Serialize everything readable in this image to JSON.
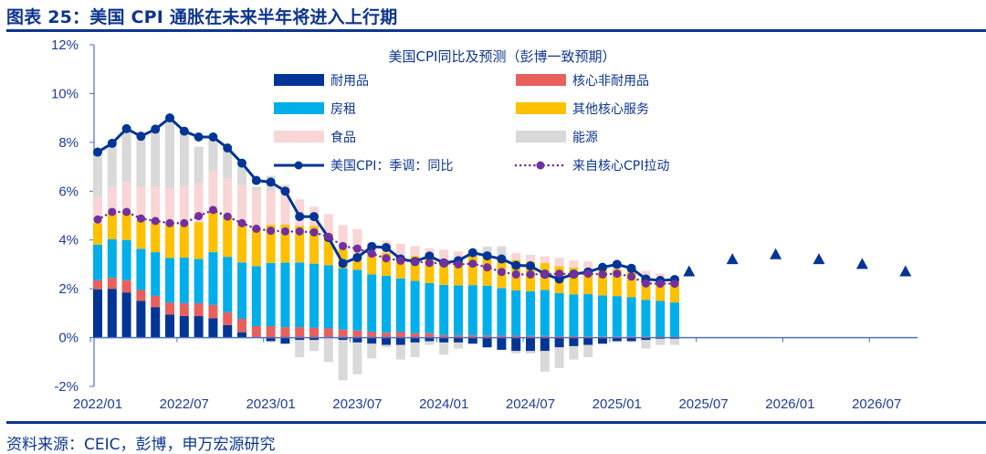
{
  "header": {
    "title": "图表 25：美国 CPI 通胀在未来半年将进入上行期"
  },
  "footer": {
    "source": "资料来源：CEIC，彭博，申万宏源研究"
  },
  "chart_data": {
    "type": "bar",
    "stacked": true,
    "title": "美国CPI同比及预测（彭博一致预期）",
    "xlabel": "",
    "ylabel": "",
    "ylim": [
      -2,
      12
    ],
    "yticks": [
      "-2%",
      "0%",
      "2%",
      "4%",
      "6%",
      "8%",
      "10%",
      "12%"
    ],
    "ytick_values": [
      -2,
      0,
      2,
      4,
      6,
      8,
      10,
      12
    ],
    "xticks": [
      "2022/01",
      "2022/07",
      "2023/01",
      "2023/07",
      "2024/01",
      "2024/07",
      "2025/01",
      "2025/07",
      "2026/01",
      "2026/07"
    ],
    "grid": false,
    "legend_placement": "top",
    "x": [
      "2022/01",
      "2022/02",
      "2022/03",
      "2022/04",
      "2022/05",
      "2022/06",
      "2022/07",
      "2022/08",
      "2022/09",
      "2022/10",
      "2022/11",
      "2022/12",
      "2023/01",
      "2023/02",
      "2023/03",
      "2023/04",
      "2023/05",
      "2023/06",
      "2023/07",
      "2023/08",
      "2023/09",
      "2023/10",
      "2023/11",
      "2023/12",
      "2024/01",
      "2024/02",
      "2024/03",
      "2024/04",
      "2024/05",
      "2024/06",
      "2024/07",
      "2024/08",
      "2024/09",
      "2024/10",
      "2024/11",
      "2024/12",
      "2025/01",
      "2025/02",
      "2025/03",
      "2025/04",
      "2025/05"
    ],
    "series": [
      {
        "name": "耐用品",
        "kind": "bar",
        "color": "#003595",
        "values": [
          1.98,
          2.0,
          1.85,
          1.51,
          1.25,
          0.94,
          0.88,
          0.88,
          0.79,
          0.51,
          0.22,
          0,
          -0.15,
          -0.25,
          -0.1,
          -0.1,
          0,
          -0.1,
          -0.2,
          -0.25,
          -0.3,
          -0.3,
          -0.2,
          -0.15,
          -0.2,
          -0.2,
          -0.25,
          -0.4,
          -0.5,
          -0.55,
          -0.55,
          -0.55,
          -0.4,
          -0.35,
          -0.3,
          -0.25,
          -0.15,
          -0.15,
          -0.1,
          -0.05,
          -0.05
        ]
      },
      {
        "name": "核心非耐用品",
        "kind": "bar",
        "color": "#e8605e",
        "values": [
          0.37,
          0.45,
          0.5,
          0.44,
          0.46,
          0.49,
          0.53,
          0.53,
          0.55,
          0.53,
          0.55,
          0.47,
          0.47,
          0.43,
          0.43,
          0.4,
          0.38,
          0.33,
          0.29,
          0.23,
          0.2,
          0.23,
          0.18,
          0.18,
          0.1,
          0.09,
          0.09,
          0.09,
          0.08,
          0.08,
          0.07,
          0.07,
          0.06,
          0.06,
          0.05,
          0.05,
          0.05,
          0.05,
          0.05,
          0.04,
          0.04
        ]
      },
      {
        "name": "房租",
        "kind": "bar",
        "color": "#00aeea",
        "values": [
          1.46,
          1.58,
          1.65,
          1.69,
          1.79,
          1.83,
          1.87,
          1.81,
          2.16,
          2.27,
          2.31,
          2.46,
          2.59,
          2.64,
          2.65,
          2.63,
          2.59,
          2.51,
          2.49,
          2.36,
          2.33,
          2.2,
          2.15,
          2.05,
          2.06,
          2.05,
          2.06,
          2.04,
          1.95,
          1.85,
          1.83,
          1.88,
          1.76,
          1.71,
          1.73,
          1.68,
          1.65,
          1.6,
          1.5,
          1.46,
          1.4
        ]
      },
      {
        "name": "其他核心服务",
        "kind": "bar",
        "color": "#ffc000",
        "values": [
          0.88,
          1.1,
          1.15,
          1.18,
          1.28,
          1.4,
          1.38,
          1.51,
          1.69,
          1.69,
          1.6,
          1.59,
          1.56,
          1.56,
          1.49,
          1.54,
          1.29,
          0.79,
          0.38,
          0.91,
          0.94,
          0.89,
          1.01,
          1.09,
          1.03,
          0.98,
          1.23,
          1.1,
          1.15,
          1.25,
          1.2,
          1.1,
          1.1,
          1.1,
          1.0,
          1.05,
          1.1,
          1.15,
          0.88,
          0.79,
          0.98
        ]
      },
      {
        "name": "食品",
        "kind": "bar",
        "color": "#f9d5d6",
        "values": [
          1.1,
          1.06,
          1.23,
          1.37,
          1.41,
          1.45,
          1.56,
          1.59,
          1.65,
          1.53,
          1.56,
          1.51,
          1.38,
          1.6,
          1.09,
          0.79,
          0.8,
          0.98,
          1.28,
          0.41,
          0.5,
          0.53,
          0.41,
          0.34,
          0.41,
          0.41,
          0.05,
          0,
          0,
          0.28,
          0.29,
          0.28,
          0.34,
          0.29,
          0.34,
          0.1,
          0.05,
          0.05,
          0.31,
          0.34,
          0.1
        ]
      },
      {
        "name": "能源",
        "kind": "bar",
        "color": "#d9d9d9",
        "values": [
          1.65,
          1.69,
          2.03,
          2.0,
          2.28,
          2.78,
          2.13,
          1.5,
          1.23,
          1.13,
          0.78,
          0.15,
          0.63,
          0.03,
          -0.7,
          -0.45,
          -1.0,
          -1.65,
          -1.3,
          -0.6,
          -0.1,
          -0.6,
          -0.6,
          -0.15,
          -0.5,
          -0.25,
          0.1,
          0.5,
          0.56,
          -0.1,
          -0.1,
          -0.85,
          -0.85,
          -0.55,
          -0.5,
          0.05,
          0.1,
          0.1,
          -0.35,
          -0.25,
          -0.25
        ]
      },
      {
        "name": "美国CPI：季调：同比",
        "kind": "line",
        "color": "#003595",
        "values": [
          7.6,
          7.96,
          8.56,
          8.25,
          8.54,
          9.0,
          8.46,
          8.22,
          8.22,
          7.77,
          7.15,
          6.44,
          6.37,
          6.0,
          4.96,
          4.96,
          4.1,
          3.04,
          3.28,
          3.73,
          3.69,
          3.22,
          3.12,
          3.34,
          3.06,
          3.15,
          3.48,
          3.35,
          3.22,
          2.96,
          2.94,
          2.6,
          2.4,
          2.6,
          2.69,
          2.88,
          3.0,
          2.84,
          2.4,
          2.34,
          2.38
        ]
      },
      {
        "name": "来自核心CPI拉动",
        "kind": "dotted-line",
        "color": "#7030a0",
        "values": [
          4.84,
          5.15,
          5.15,
          4.88,
          4.78,
          4.69,
          4.69,
          4.98,
          5.23,
          4.96,
          4.69,
          4.46,
          4.38,
          4.35,
          4.35,
          4.31,
          4.13,
          3.75,
          3.65,
          3.44,
          3.25,
          3.15,
          3.12,
          3.06,
          3.06,
          3.0,
          3.03,
          2.88,
          2.69,
          2.59,
          2.59,
          2.6,
          2.62,
          2.59,
          2.62,
          2.59,
          2.62,
          2.5,
          2.22,
          2.21,
          2.21
        ]
      }
    ],
    "forecast": {
      "marker": "triangle",
      "color": "#003595",
      "x": [
        "2025/06",
        "2025/09",
        "2025/12",
        "2026/03",
        "2026/06",
        "2026/09"
      ],
      "values": [
        2.7,
        3.2,
        3.4,
        3.2,
        3.0,
        2.7
      ]
    }
  }
}
